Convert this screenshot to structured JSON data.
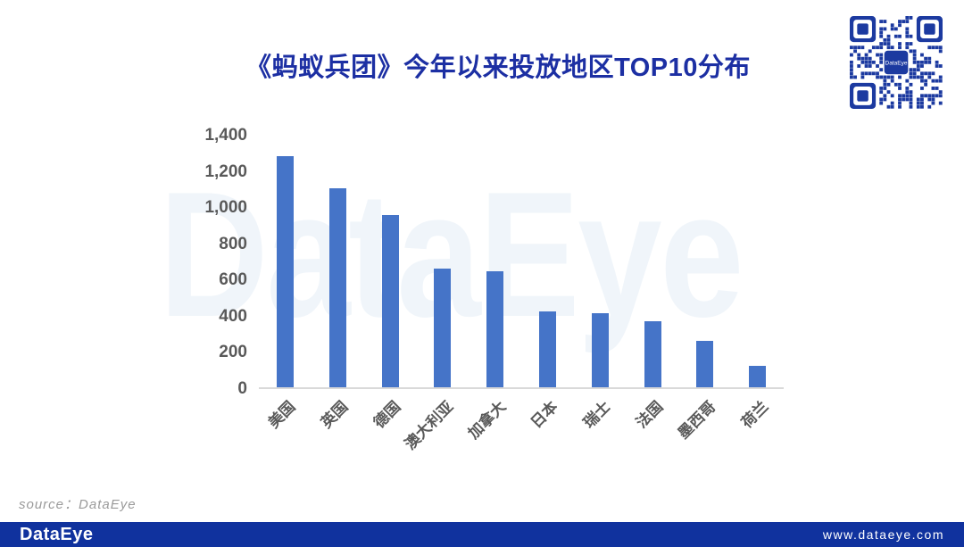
{
  "title": "《蚂蚁兵团》今年以来投放地区TOP10分布",
  "watermark": "DataEye",
  "source_label": "source：DataEye",
  "footer": {
    "logo": "DataEye",
    "url": "www.dataeye.com",
    "bar_color": "#10329E"
  },
  "qr": {
    "label": "DataEye",
    "color": "#1C3AA0"
  },
  "colors": {
    "bar": "#4574C8",
    "title": "#1C2FA3",
    "axis_text": "#595959",
    "baseline": "#D9D9D9",
    "watermark": "#F0F5FA"
  },
  "chart_data": {
    "type": "bar",
    "title": "《蚂蚁兵团》今年以来投放地区TOP10分布",
    "categories": [
      "美国",
      "英国",
      "德国",
      "澳大利亚",
      "加拿大",
      "日本",
      "瑞士",
      "法国",
      "墨西哥",
      "荷兰"
    ],
    "values": [
      1275,
      1100,
      950,
      655,
      640,
      420,
      410,
      365,
      255,
      120
    ],
    "xlabel": "",
    "ylabel": "",
    "ylim": [
      0,
      1400
    ],
    "ytick_step": 200,
    "ytick_labels": [
      "0",
      "200",
      "400",
      "600",
      "800",
      "1,000",
      "1,200",
      "1,400"
    ],
    "grid": false,
    "legend": false,
    "bar_color": "#4574C8"
  }
}
